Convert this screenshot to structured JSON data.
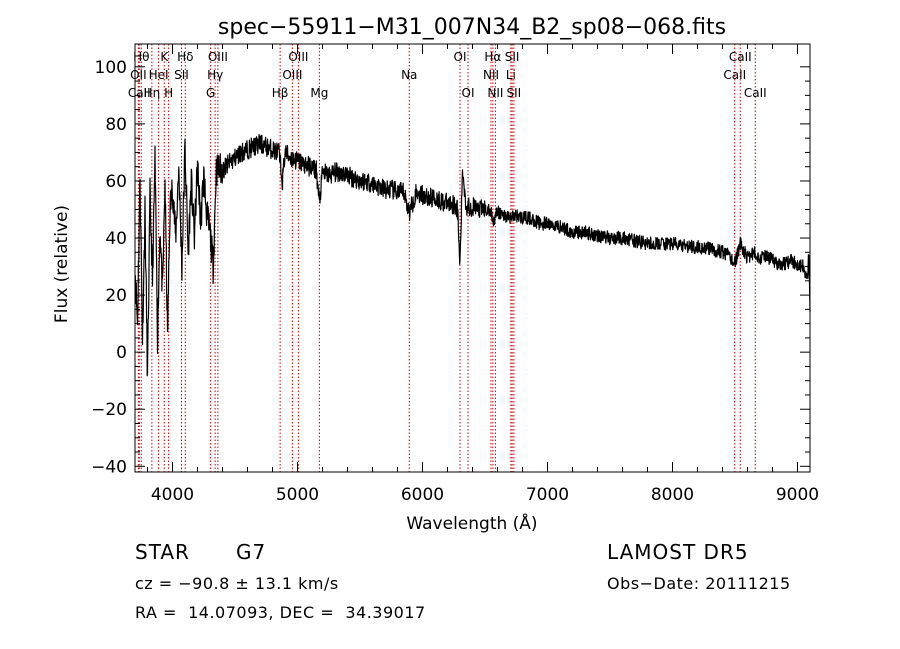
{
  "chart_data": {
    "type": "line",
    "title": "spec−55911−M31_007N34_B2_sp08−068.fits",
    "xlabel": "Wavelength (Å)",
    "ylabel": "Flux (relative)",
    "xlim": [
      3700,
      9100
    ],
    "ylim": [
      -42,
      108
    ],
    "x_ticks": [
      4000,
      5000,
      6000,
      7000,
      8000,
      9000
    ],
    "y_ticks": [
      -40,
      -20,
      0,
      20,
      40,
      60,
      80,
      100
    ],
    "y_tick_labels": [
      "−40",
      "−20",
      "0",
      "20",
      "40",
      "60",
      "80",
      "100"
    ],
    "grid": false,
    "line_color": "#000000",
    "marker_color": "#cc0000",
    "spectral_lines": [
      {
        "label": "OII",
        "x": 3727,
        "row": 1
      },
      {
        "label": "CaII",
        "x": 3734,
        "row": 2
      },
      {
        "label": "Hθ",
        "x": 3750,
        "row": 0
      },
      {
        "label": "Hη",
        "x": 3835,
        "row": 2
      },
      {
        "label": "HeI",
        "x": 3889,
        "row": 1
      },
      {
        "label": "K",
        "x": 3934,
        "row": 0
      },
      {
        "label": "H",
        "x": 3969,
        "row": 2
      },
      {
        "label": "SII",
        "x": 4072,
        "row": 1
      },
      {
        "label": "Hδ",
        "x": 4102,
        "row": 0
      },
      {
        "label": "G",
        "x": 4305,
        "row": 2
      },
      {
        "label": "Hγ",
        "x": 4341,
        "row": 1
      },
      {
        "label": "OIII",
        "x": 4363,
        "row": 0
      },
      {
        "label": "Hβ",
        "x": 4861,
        "row": 2
      },
      {
        "label": "OIII",
        "x": 4959,
        "row": 1
      },
      {
        "label": "OIII",
        "x": 5007,
        "row": 0
      },
      {
        "label": "Mg",
        "x": 5175,
        "row": 2
      },
      {
        "label": "Na",
        "x": 5894,
        "row": 1
      },
      {
        "label": "OI",
        "x": 6300,
        "row": 0
      },
      {
        "label": "OI",
        "x": 6364,
        "row": 2
      },
      {
        "label": "NII",
        "x": 6548,
        "row": 1
      },
      {
        "label": "Hα",
        "x": 6563,
        "row": 0
      },
      {
        "label": "NII",
        "x": 6583,
        "row": 2
      },
      {
        "label": "Li",
        "x": 6707,
        "row": 1
      },
      {
        "label": "SII",
        "x": 6717,
        "row": 0
      },
      {
        "label": "SII",
        "x": 6731,
        "row": 2
      },
      {
        "label": "CaII",
        "x": 8498,
        "row": 1
      },
      {
        "label": "CaII",
        "x": 8542,
        "row": 0
      },
      {
        "label": "CaII",
        "x": 8662,
        "row": 2
      }
    ],
    "series": [
      {
        "x": [
          3700,
          3720,
          3740,
          3760,
          3780,
          3800,
          3820,
          3840,
          3860,
          3880,
          3900,
          3920,
          3940,
          3960,
          3980,
          4000,
          4025,
          4050,
          4075,
          4100,
          4125,
          4150,
          4175,
          4200,
          4225,
          4250,
          4275,
          4300,
          4325,
          4350,
          4400,
          4450,
          4500,
          4550,
          4600,
          4650,
          4700,
          4750,
          4800,
          4850,
          4880,
          4900,
          4950,
          5000,
          5050,
          5100,
          5150,
          5175,
          5200,
          5250,
          5300,
          5350,
          5400,
          5450,
          5500,
          5550,
          5600,
          5650,
          5700,
          5750,
          5800,
          5850,
          5894,
          5950,
          6000,
          6050,
          6100,
          6150,
          6200,
          6250,
          6280,
          6300,
          6320,
          6350,
          6400,
          6450,
          6500,
          6550,
          6563,
          6600,
          6650,
          6700,
          6750,
          6800,
          6850,
          6900,
          6950,
          7000,
          7100,
          7200,
          7300,
          7400,
          7500,
          7600,
          7700,
          7800,
          7900,
          8000,
          8100,
          8200,
          8300,
          8400,
          8450,
          8500,
          8542,
          8600,
          8650,
          8700,
          8750,
          8800,
          8850,
          8900,
          8950,
          9000,
          9050,
          9080,
          9090,
          9100
        ],
        "y": [
          30,
          10,
          62,
          5,
          50,
          -10,
          55,
          25,
          68,
          5,
          45,
          20,
          60,
          5,
          50,
          58,
          40,
          65,
          30,
          72,
          35,
          60,
          40,
          66,
          45,
          62,
          48,
          42,
          30,
          64,
          64,
          66,
          68,
          70,
          71,
          72,
          73,
          72,
          71,
          70,
          60,
          70,
          68,
          67,
          66,
          65,
          64,
          52,
          63,
          62,
          63,
          63,
          62,
          61,
          60,
          60,
          59,
          58,
          57,
          57,
          56,
          56,
          49,
          56,
          55,
          54,
          54,
          53,
          52,
          52,
          50,
          30,
          64,
          51,
          51,
          50,
          50,
          49,
          46,
          49,
          48,
          47,
          48,
          47,
          47,
          46,
          45,
          45,
          44,
          42,
          42,
          41,
          40,
          40,
          39,
          38,
          38,
          38,
          37,
          37,
          36,
          35,
          34,
          31,
          38,
          33,
          35,
          33,
          34,
          32,
          31,
          31,
          32,
          31,
          30,
          25,
          35,
          14
        ]
      }
    ]
  },
  "info": {
    "object_class": "STAR",
    "subclass": "G7",
    "survey": "LAMOST DR5",
    "redshift_text": "cz = −90.8 ± 13.1 km/s",
    "obs_date_text": "Obs−Date: 20111215",
    "coords_text": "RA =  14.07093, DEC =  34.39017"
  }
}
